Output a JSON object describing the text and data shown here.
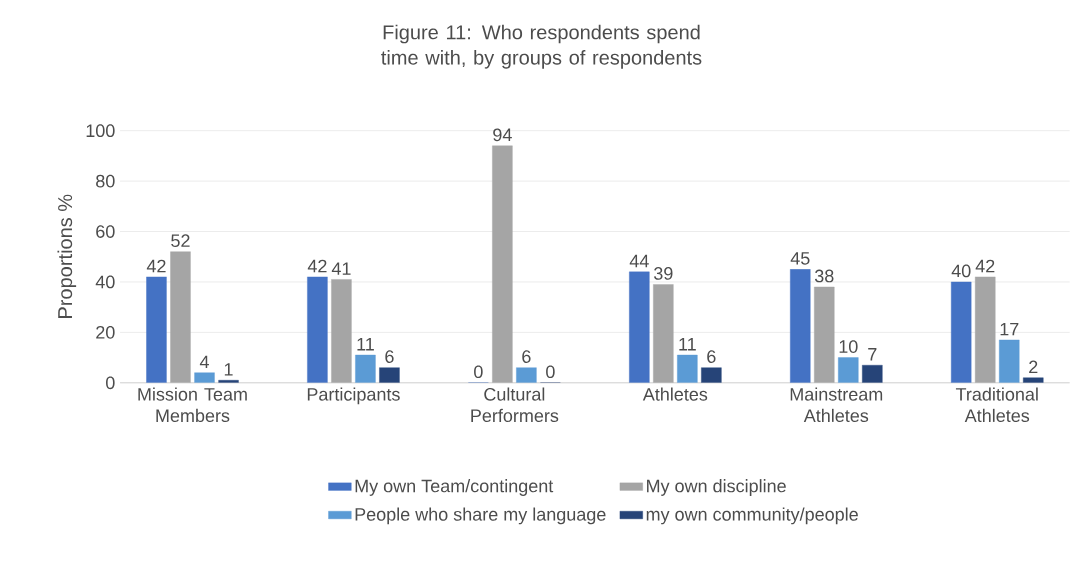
{
  "chart_data": {
    "type": "bar",
    "title": "Figure 11: Who respondents spend time with, by groups of respondents",
    "ylabel": "Proportions  %",
    "categories": [
      "Mission Team Members",
      "Participants",
      "Cultural Performers",
      "Athletes",
      "Mainstream Athletes",
      "Traditional Athletes"
    ],
    "series": [
      {
        "name": "My own Team/contingent",
        "color": "#4472c4",
        "values": [
          42,
          42,
          0,
          44,
          45,
          40
        ]
      },
      {
        "name": "My own discipline",
        "color": "#a5a5a5",
        "values": [
          52,
          41,
          94,
          39,
          38,
          42
        ]
      },
      {
        "name": "People who share my language",
        "color": "#5b9bd5",
        "values": [
          4,
          11,
          6,
          11,
          10,
          17
        ]
      },
      {
        "name": "my own community/people",
        "color": "#264478",
        "values": [
          1,
          6,
          0,
          6,
          7,
          2
        ]
      }
    ],
    "ylim": [
      0,
      100
    ],
    "yticks": [
      0,
      20,
      40,
      60,
      80,
      100
    ],
    "grid": "y",
    "legend": "bottom",
    "data_labels": true
  }
}
